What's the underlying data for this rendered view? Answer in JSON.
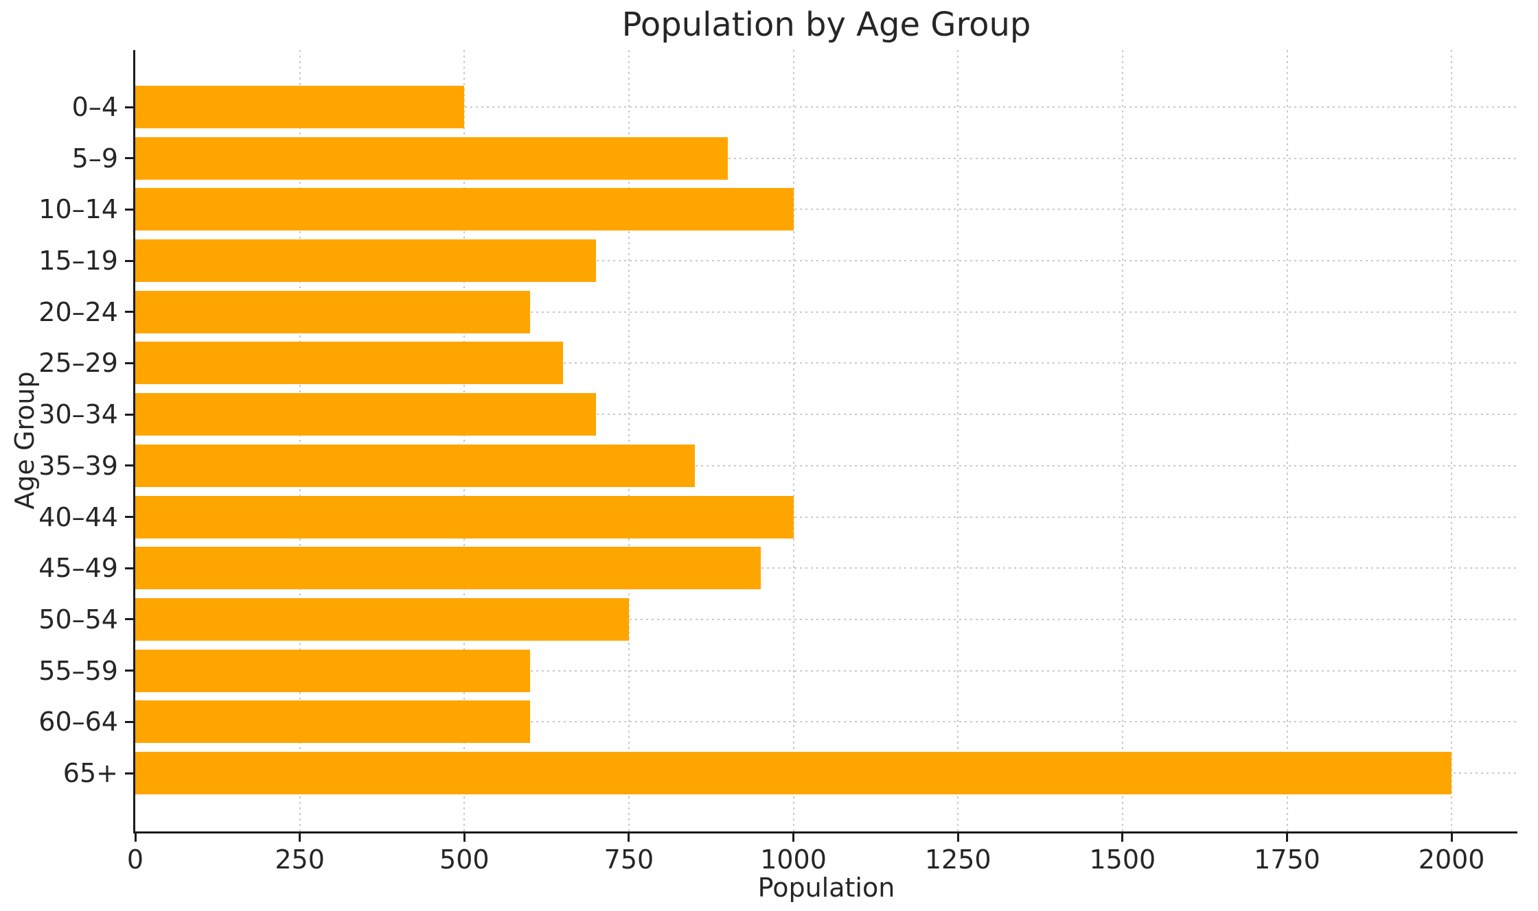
{
  "chart_data": {
    "type": "bar",
    "orientation": "horizontal",
    "title": "Population by Age Group",
    "xlabel": "Population",
    "ylabel": "Age Group",
    "categories": [
      "0–4",
      "5–9",
      "10–14",
      "15–19",
      "20–24",
      "25–29",
      "30–34",
      "35–39",
      "40–44",
      "45–49",
      "50–54",
      "55–59",
      "60–64",
      "65+"
    ],
    "values": [
      500,
      900,
      1000,
      700,
      600,
      650,
      700,
      850,
      1000,
      950,
      750,
      600,
      600,
      2000
    ],
    "x_ticks": [
      0,
      250,
      500,
      750,
      1000,
      1250,
      1500,
      1750,
      2000
    ],
    "xlim": [
      0,
      2100
    ],
    "bar_color": "#FFA500",
    "grid": "dotted, both axes, behind bars",
    "grid_color": "#c9c9c9",
    "axis_color": "#1a1a1a",
    "text_color": "#262626",
    "background_color": "#ffffff",
    "legend": "none",
    "spines": "left and bottom only"
  }
}
